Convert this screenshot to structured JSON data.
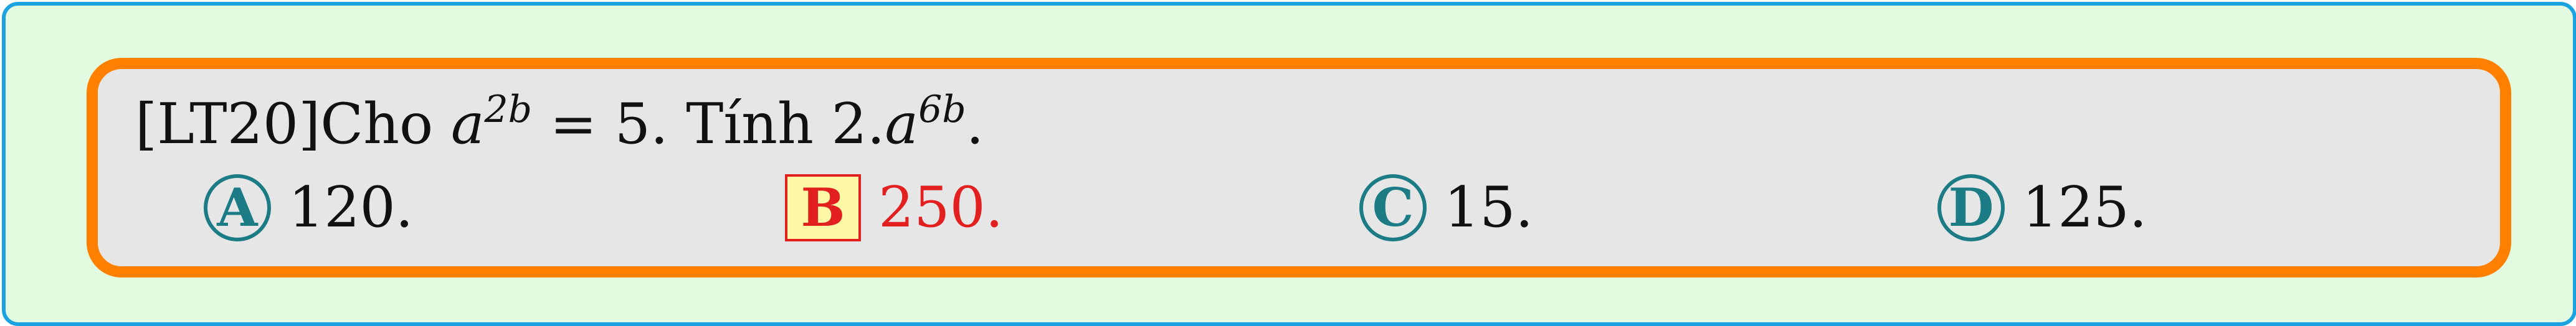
{
  "question": {
    "tag": "[LT20]",
    "prefix": "Cho ",
    "given_base": "a",
    "given_exp": "2b",
    "given_rest": " = 5. Tính 2.",
    "ask_base": "a",
    "ask_exp": "6b",
    "ask_rest": "."
  },
  "choices": [
    {
      "letter": "A",
      "text": "120.",
      "correct": false
    },
    {
      "letter": "B",
      "text": "250.",
      "correct": true
    },
    {
      "letter": "C",
      "text": "15.",
      "correct": false
    },
    {
      "letter": "D",
      "text": "125.",
      "correct": false
    }
  ],
  "colors": {
    "page_bg": "#e2fbe0",
    "page_border": "#1aa3e0",
    "box_bg": "#e6e6e6",
    "box_border": "#ff8000",
    "choice_teal": "#1b7c85",
    "correct_red": "#e2201f",
    "correct_fill": "#fdf7a6"
  }
}
